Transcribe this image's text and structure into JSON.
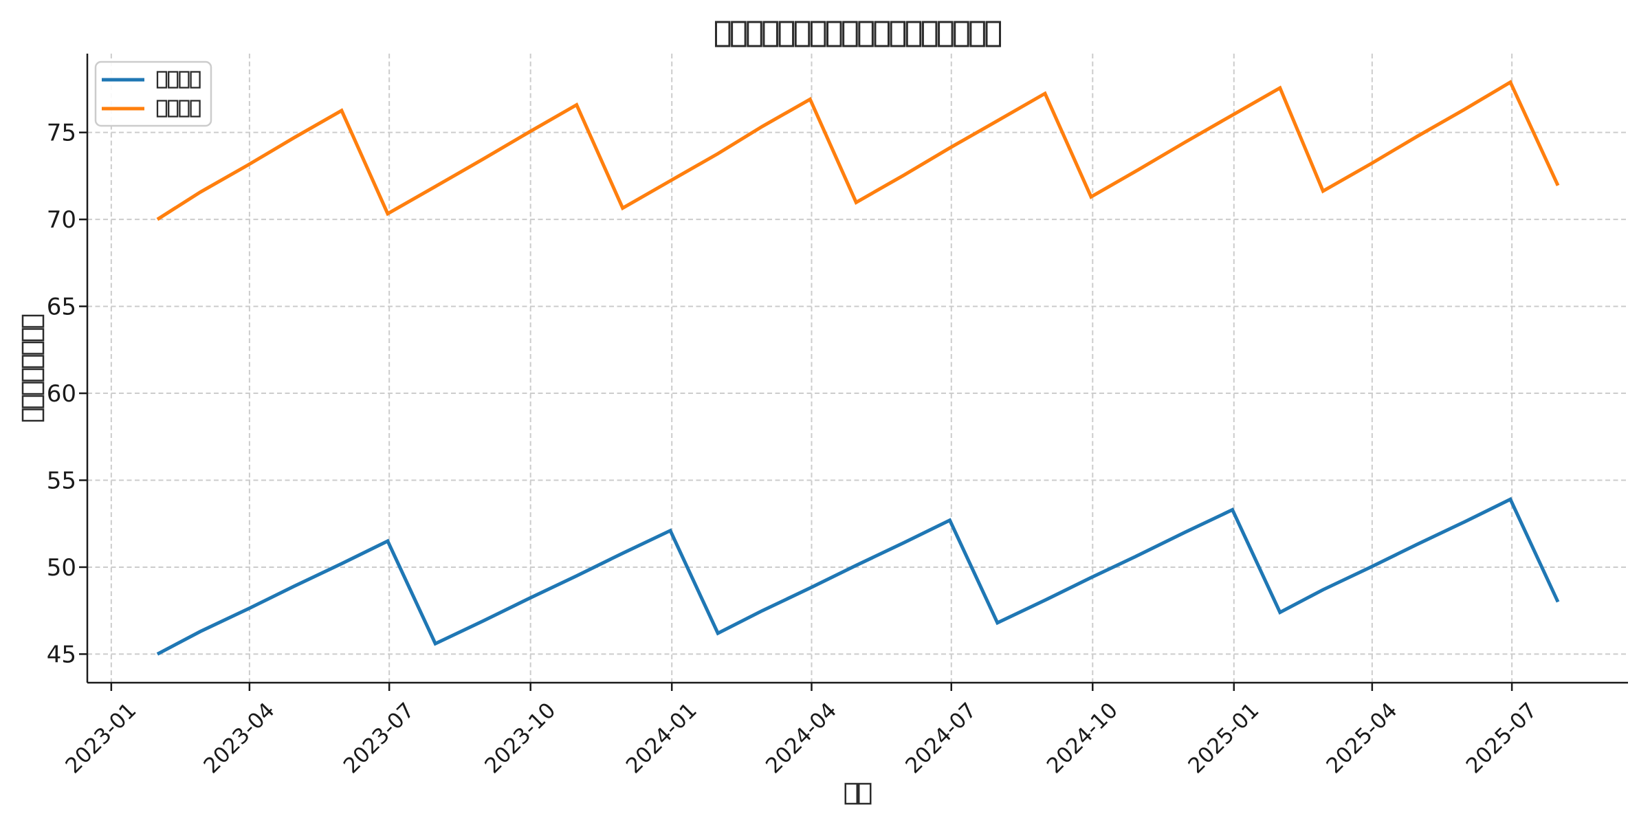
{
  "figure": {
    "background": "#ffffff",
    "title": {
      "glyph_count": 18,
      "rendered_as": "missing-glyph-tofu-boxes"
    },
    "x_axis_label": {
      "glyph_count": 2,
      "rendered_as": "missing-glyph-tofu-boxes"
    },
    "y_axis_label": {
      "glyph_count": 8,
      "rendered_as": "missing-glyph-tofu-boxes"
    }
  },
  "legend": {
    "position": "upper-left",
    "border_color": "#cccccc",
    "background": "#ffffff",
    "items": [
      {
        "label_glyph_count": 4,
        "color": "#1f77b4"
      },
      {
        "label_glyph_count": 4,
        "color": "#ff7f0e"
      }
    ]
  },
  "chart_data": {
    "type": "line",
    "x": [
      "2023-01-31",
      "2023-02-28",
      "2023-03-31",
      "2023-04-30",
      "2023-05-31",
      "2023-06-30",
      "2023-07-31",
      "2023-08-31",
      "2023-09-30",
      "2023-10-31",
      "2023-11-30",
      "2023-12-31",
      "2024-01-31",
      "2024-02-29",
      "2024-03-31",
      "2024-04-30",
      "2024-05-31",
      "2024-06-30",
      "2024-07-31",
      "2024-08-31",
      "2024-09-30",
      "2024-10-31",
      "2024-11-30",
      "2024-12-31",
      "2025-01-31",
      "2025-02-28",
      "2025-03-31",
      "2025-04-30",
      "2025-05-31",
      "2025-06-30",
      "2025-07-31"
    ],
    "series": [
      {
        "name_glyph_count": 4,
        "color": "#1f77b4",
        "values": [
          45.0,
          46.3,
          47.6,
          48.9,
          50.2,
          51.5,
          45.6,
          46.9,
          48.2,
          49.5,
          50.8,
          52.1,
          46.2,
          47.5,
          48.8,
          50.1,
          51.4,
          52.7,
          46.8,
          48.1,
          49.4,
          50.7,
          52.0,
          53.3,
          47.4,
          48.7,
          50.0,
          51.3,
          52.6,
          53.9,
          48.0
        ]
      },
      {
        "name_glyph_count": 4,
        "color": "#ff7f0e",
        "values": [
          70.0,
          71.57,
          73.13,
          74.7,
          76.26,
          70.33,
          71.89,
          73.46,
          75.02,
          76.59,
          70.65,
          72.22,
          73.78,
          75.35,
          76.91,
          70.98,
          72.54,
          74.11,
          75.67,
          77.24,
          71.3,
          72.87,
          74.43,
          76.0,
          77.56,
          71.63,
          73.19,
          74.76,
          76.32,
          77.89,
          71.95
        ]
      }
    ],
    "x_tick_labels": [
      "2023-01",
      "2023-04",
      "2023-07",
      "2023-10",
      "2024-01",
      "2024-04",
      "2024-07",
      "2024-10",
      "2025-01",
      "2025-04",
      "2025-07"
    ],
    "x_tick_rotation_deg": 45,
    "y_ticks": [
      45,
      50,
      55,
      60,
      65,
      70,
      75
    ],
    "ylim_data": [
      45.0,
      77.89
    ],
    "grid": true,
    "grid_color": "#cccccc",
    "axis_color": "#1a1a1a",
    "text_color": "#1a1a1a",
    "tofu_color": "#2b2b2b",
    "line_width": 5,
    "legend_position": "upper-left"
  }
}
